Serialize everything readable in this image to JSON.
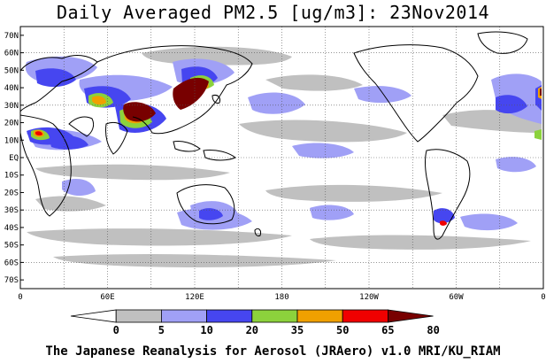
{
  "title": "Daily Averaged PM2.5 [ug/m3]: 23Nov2014",
  "footer": "The Japanese Reanalysis for Aerosol (JRAero) v1.0 MRI/KU_RIAM",
  "map": {
    "projection": "equirectangular",
    "lon_range": [
      0,
      360
    ],
    "lat_range": [
      -75,
      75
    ],
    "lat_labels": [
      "70N",
      "60N",
      "50N",
      "40N",
      "30N",
      "20N",
      "10N",
      "EQ",
      "10S",
      "20S",
      "30S",
      "40S",
      "50S",
      "60S",
      "70S"
    ],
    "lon_labels": [
      "0",
      "60E",
      "120E",
      "180",
      "120W",
      "60W",
      "0"
    ],
    "grid": "dotted"
  },
  "colorbar": {
    "ticks": [
      "0",
      "5",
      "10",
      "20",
      "35",
      "50",
      "65",
      "80"
    ],
    "colors": [
      "#ffffff",
      "#c0c0c0",
      "#a0a0f6",
      "#4646f0",
      "#8cd23c",
      "#f0a000",
      "#f00000",
      "#780000"
    ]
  },
  "colors": {
    "land_outline": "#000000",
    "background": "#ffffff"
  }
}
